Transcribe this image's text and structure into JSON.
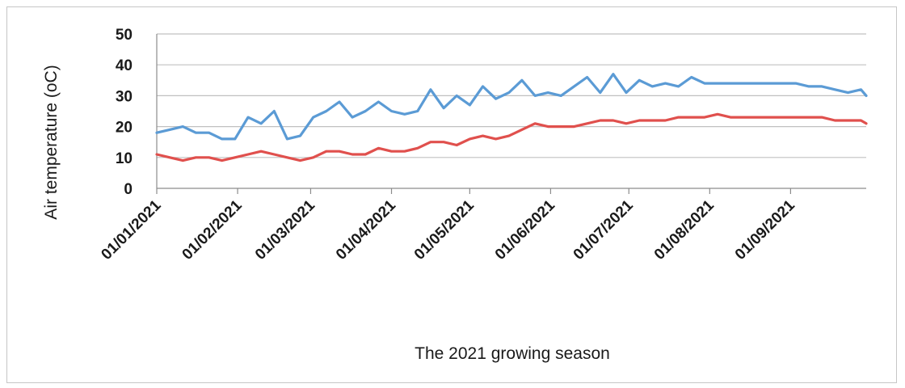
{
  "chart_data": {
    "type": "line",
    "xlabel": "The 2021 growing season",
    "ylabel": "Air temperature (oC)",
    "ylim": [
      0,
      50
    ],
    "yticks": [
      0,
      10,
      20,
      30,
      40,
      50
    ],
    "xlim": [
      "01/01/2021",
      "30/09/2021"
    ],
    "xtick_labels": [
      "01/01/2021",
      "01/02/2021",
      "01/03/2021",
      "01/04/2021",
      "01/05/2021",
      "01/06/2021",
      "01/07/2021",
      "01/08/2021",
      "01/09/2021"
    ],
    "grid": true,
    "legend": "none",
    "x": [
      "01/01/2021",
      "06/01/2021",
      "11/01/2021",
      "16/01/2021",
      "21/01/2021",
      "26/01/2021",
      "31/01/2021",
      "05/02/2021",
      "10/02/2021",
      "15/02/2021",
      "20/02/2021",
      "25/02/2021",
      "02/03/2021",
      "07/03/2021",
      "12/03/2021",
      "17/03/2021",
      "22/03/2021",
      "27/03/2021",
      "01/04/2021",
      "06/04/2021",
      "11/04/2021",
      "16/04/2021",
      "21/04/2021",
      "26/04/2021",
      "01/05/2021",
      "06/05/2021",
      "11/05/2021",
      "16/05/2021",
      "21/05/2021",
      "26/05/2021",
      "31/05/2021",
      "05/06/2021",
      "10/06/2021",
      "15/06/2021",
      "20/06/2021",
      "25/06/2021",
      "30/06/2021",
      "05/07/2021",
      "10/07/2021",
      "15/07/2021",
      "20/07/2021",
      "25/07/2021",
      "30/07/2021",
      "04/08/2021",
      "09/08/2021",
      "14/08/2021",
      "19/08/2021",
      "24/08/2021",
      "29/08/2021",
      "03/09/2021",
      "08/09/2021",
      "13/09/2021",
      "18/09/2021",
      "23/09/2021",
      "28/09/2021",
      "30/09/2021"
    ],
    "series": [
      {
        "color": "#5b9bd5",
        "values": [
          18,
          19,
          20,
          18,
          18,
          16,
          16,
          23,
          21,
          25,
          16,
          17,
          23,
          25,
          28,
          23,
          25,
          28,
          25,
          24,
          25,
          32,
          26,
          30,
          27,
          33,
          29,
          31,
          35,
          30,
          31,
          30,
          33,
          36,
          31,
          37,
          31,
          35,
          33,
          34,
          33,
          36,
          34,
          34,
          34,
          34,
          34,
          34,
          34,
          34,
          33,
          33,
          32,
          31,
          32,
          30
        ]
      },
      {
        "color": "#e0504d",
        "values": [
          11,
          10,
          9,
          10,
          10,
          9,
          10,
          11,
          12,
          11,
          10,
          9,
          10,
          12,
          12,
          11,
          11,
          13,
          12,
          12,
          13,
          15,
          15,
          14,
          16,
          17,
          16,
          17,
          19,
          21,
          20,
          20,
          20,
          21,
          22,
          22,
          21,
          22,
          22,
          22,
          23,
          23,
          23,
          24,
          23,
          23,
          23,
          23,
          23,
          23,
          23,
          23,
          22,
          22,
          22,
          21
        ]
      }
    ]
  }
}
